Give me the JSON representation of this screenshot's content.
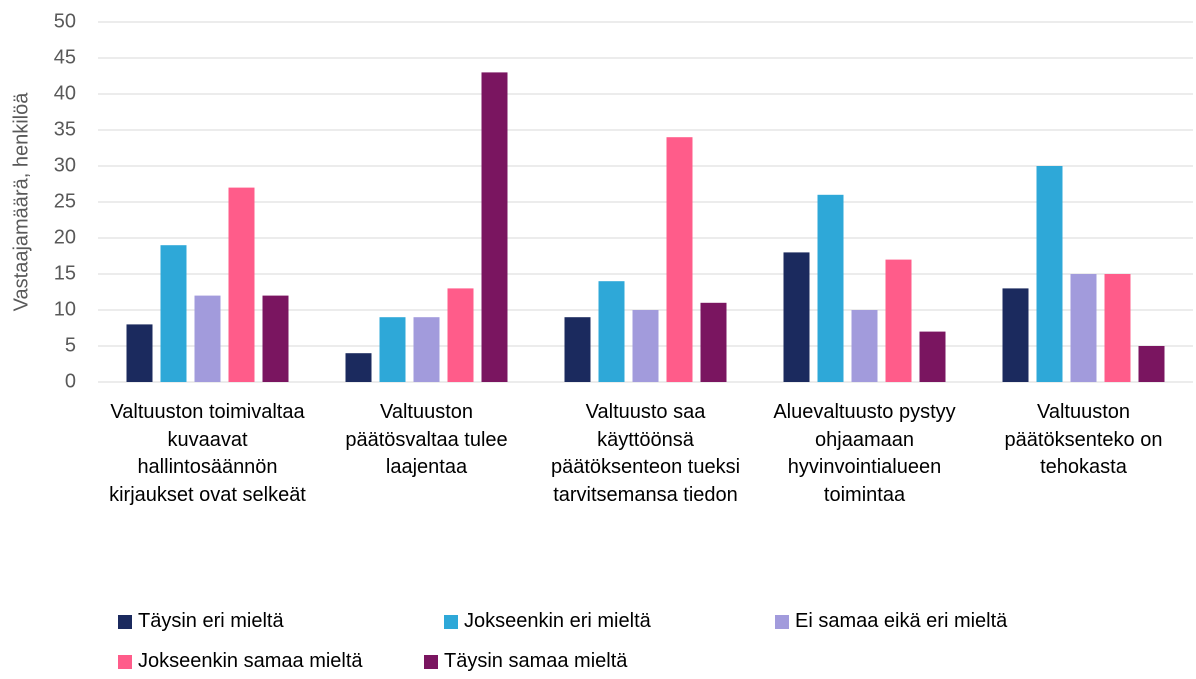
{
  "chart_data": {
    "type": "bar",
    "y_label": "Vastaajamäärä, henkilöä",
    "categories": [
      "Valtuuston toimivaltaa kuvaavat hallintosäännön kirjaukset ovat selkeät",
      "Valtuuston päätösvaltaa tulee laajentaa",
      "Valtuusto saa käyttöönsä päätöksenteon tueksi tarvitsemansa tiedon",
      "Aluevaltuusto pystyy ohjaamaan hyvinvointialueen toimintaa",
      "Valtuuston päätöksenteko on tehokasta"
    ],
    "series": [
      {
        "name": "Täysin eri mieltä",
        "color": "#1b2a5e",
        "values": [
          8,
          4,
          9,
          18,
          13
        ]
      },
      {
        "name": "Jokseenkin eri mieltä",
        "color": "#2ea8d8",
        "values": [
          19,
          9,
          14,
          26,
          30
        ]
      },
      {
        "name": "Ei samaa eikä eri mieltä",
        "color": "#a29bdc",
        "values": [
          12,
          9,
          10,
          10,
          15
        ]
      },
      {
        "name": "Jokseenkin samaa mieltä",
        "color": "#ff5c8a",
        "values": [
          27,
          13,
          34,
          17,
          15
        ]
      },
      {
        "name": "Täysin samaa mieltä",
        "color": "#7a1560",
        "values": [
          12,
          43,
          11,
          7,
          5
        ]
      }
    ],
    "ylim": [
      0,
      50
    ],
    "yticks": [
      0,
      5,
      10,
      15,
      20,
      25,
      30,
      35,
      40,
      45,
      50
    ],
    "grid": true,
    "legend": "bottom"
  }
}
